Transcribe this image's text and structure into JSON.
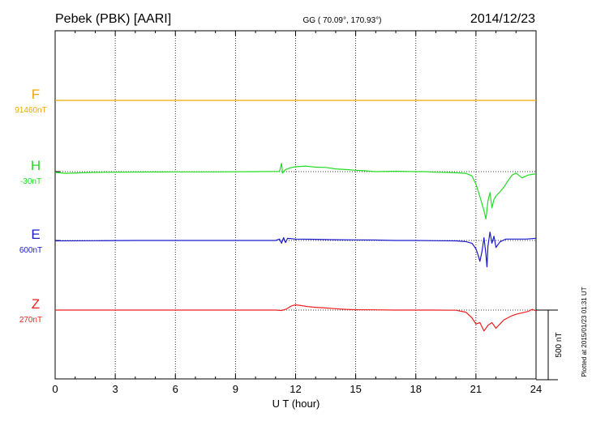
{
  "header": {
    "station": "Pebek (PBK)  [AARI]",
    "coords": "GG ( 70.09°, 170.93°)",
    "date": "2014/12/23"
  },
  "plotted_note": "Plotted at 2015/01/23 01:31  UT",
  "scale_label": "500 nT",
  "chart_data": {
    "type": "line",
    "xlabel": "U T (hour)",
    "xlim": [
      0,
      24
    ],
    "xticks": [
      0,
      3,
      6,
      9,
      12,
      15,
      18,
      21,
      24
    ],
    "grid": true,
    "scale_nT": 500,
    "series": [
      {
        "name": "F",
        "baseline": "91460nT",
        "color": "#f0a800",
        "ref_offset_nT": 0,
        "points": [
          [
            0,
            0
          ],
          [
            6,
            0
          ],
          [
            12,
            0
          ],
          [
            18,
            0
          ],
          [
            24,
            0
          ]
        ]
      },
      {
        "name": "H",
        "baseline": "-30nT",
        "color": "#22dd22",
        "ref_offset_nT": 0,
        "points": [
          [
            0,
            -5
          ],
          [
            0.5,
            -12
          ],
          [
            2,
            -5
          ],
          [
            4,
            -3
          ],
          [
            6,
            -2
          ],
          [
            8,
            -2
          ],
          [
            10,
            0
          ],
          [
            11.2,
            2
          ],
          [
            11.3,
            60
          ],
          [
            11.35,
            -10
          ],
          [
            11.5,
            15
          ],
          [
            11.8,
            30
          ],
          [
            12,
            35
          ],
          [
            12.5,
            40
          ],
          [
            13,
            32
          ],
          [
            13.5,
            30
          ],
          [
            14,
            20
          ],
          [
            14.5,
            15
          ],
          [
            15,
            10
          ],
          [
            15.5,
            6
          ],
          [
            16,
            0
          ],
          [
            17,
            3
          ],
          [
            18,
            0
          ],
          [
            18.5,
            0
          ],
          [
            19,
            -4
          ],
          [
            19.5,
            -5
          ],
          [
            20,
            -8
          ],
          [
            20.5,
            -12
          ],
          [
            20.8,
            -30
          ],
          [
            21,
            -90
          ],
          [
            21.2,
            -180
          ],
          [
            21.4,
            -280
          ],
          [
            21.5,
            -340
          ],
          [
            21.6,
            -210
          ],
          [
            21.7,
            -150
          ],
          [
            21.8,
            -260
          ],
          [
            21.9,
            -200
          ],
          [
            22,
            -175
          ],
          [
            22.2,
            -145
          ],
          [
            22.4,
            -110
          ],
          [
            22.6,
            -65
          ],
          [
            22.8,
            -25
          ],
          [
            23,
            -10
          ],
          [
            23.3,
            -45
          ],
          [
            23.6,
            -25
          ],
          [
            23.8,
            -20
          ],
          [
            24,
            -15
          ]
        ]
      },
      {
        "name": "E",
        "baseline": "600nT",
        "color": "#1a1acc",
        "ref_offset_nT": 0,
        "points": [
          [
            0,
            -3
          ],
          [
            2,
            -2
          ],
          [
            4,
            0
          ],
          [
            6,
            0
          ],
          [
            8,
            0
          ],
          [
            10,
            0
          ],
          [
            11,
            0
          ],
          [
            11.2,
            10
          ],
          [
            11.3,
            -20
          ],
          [
            11.4,
            20
          ],
          [
            11.5,
            -15
          ],
          [
            11.6,
            15
          ],
          [
            12,
            10
          ],
          [
            13,
            8
          ],
          [
            14,
            5
          ],
          [
            15,
            4
          ],
          [
            16,
            3
          ],
          [
            17,
            0
          ],
          [
            18,
            0
          ],
          [
            19,
            -2
          ],
          [
            20,
            -3
          ],
          [
            20.5,
            -8
          ],
          [
            20.8,
            -20
          ],
          [
            21,
            -60
          ],
          [
            21.1,
            -100
          ],
          [
            21.2,
            -150
          ],
          [
            21.3,
            -80
          ],
          [
            21.4,
            20
          ],
          [
            21.5,
            -100
          ],
          [
            21.55,
            -190
          ],
          [
            21.6,
            -40
          ],
          [
            21.7,
            60
          ],
          [
            21.8,
            -20
          ],
          [
            21.9,
            30
          ],
          [
            22,
            -50
          ],
          [
            22.2,
            -10
          ],
          [
            22.5,
            10
          ],
          [
            23,
            10
          ],
          [
            23.5,
            10
          ],
          [
            24,
            15
          ]
        ]
      },
      {
        "name": "Z",
        "baseline": "270nT",
        "color": "#ee2020",
        "ref_offset_nT": 0,
        "points": [
          [
            0,
            0
          ],
          [
            1,
            0
          ],
          [
            2,
            0
          ],
          [
            4,
            0
          ],
          [
            6,
            0
          ],
          [
            8,
            0
          ],
          [
            10,
            0
          ],
          [
            11,
            0
          ],
          [
            11.3,
            -3
          ],
          [
            11.5,
            5
          ],
          [
            11.8,
            30
          ],
          [
            12,
            38
          ],
          [
            12.3,
            32
          ],
          [
            12.6,
            25
          ],
          [
            13,
            20
          ],
          [
            13.5,
            15
          ],
          [
            14,
            10
          ],
          [
            14.5,
            5
          ],
          [
            15,
            3
          ],
          [
            16,
            2
          ],
          [
            17,
            0
          ],
          [
            18,
            0
          ],
          [
            19,
            0
          ],
          [
            20,
            -1
          ],
          [
            20.5,
            -15
          ],
          [
            20.8,
            -55
          ],
          [
            21,
            -100
          ],
          [
            21.2,
            -90
          ],
          [
            21.4,
            -150
          ],
          [
            21.6,
            -110
          ],
          [
            21.8,
            -90
          ],
          [
            22,
            -130
          ],
          [
            22.2,
            -100
          ],
          [
            22.4,
            -70
          ],
          [
            22.6,
            -55
          ],
          [
            22.8,
            -40
          ],
          [
            23,
            -30
          ],
          [
            23.3,
            -20
          ],
          [
            23.6,
            -10
          ],
          [
            23.8,
            5
          ],
          [
            24,
            -5
          ]
        ]
      }
    ]
  }
}
